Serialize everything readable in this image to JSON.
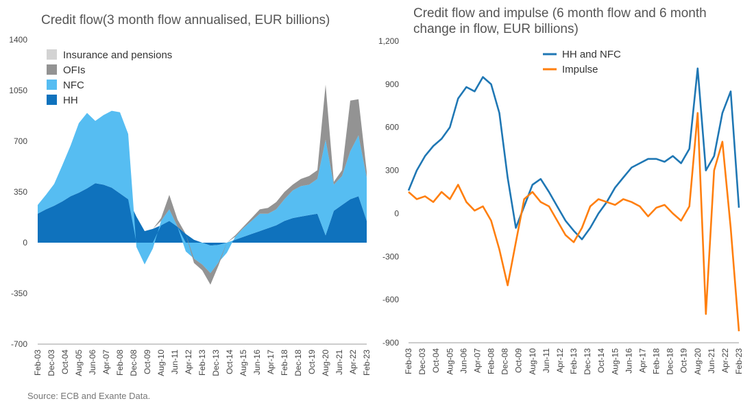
{
  "chart_data": [
    {
      "type": "area",
      "stacked": true,
      "title": "Credit flow(3 month flow annualised, EUR billions)",
      "ylim": [
        -700,
        1400
      ],
      "yticks": [
        1400,
        1050,
        700,
        350,
        0,
        -350,
        -700
      ],
      "ytick_labels": [
        "1400",
        "1050",
        "700",
        "350",
        "0",
        "-350",
        "-700"
      ],
      "xtick_labels": [
        "Feb-03",
        "Dec-03",
        "Oct-04",
        "Aug-05",
        "Jun-06",
        "Apr-07",
        "Feb-08",
        "Dec-08",
        "Oct-09",
        "Aug-10",
        "Jun-11",
        "Apr-12",
        "Feb-13",
        "Dec-13",
        "Oct-14",
        "Aug-15",
        "Jun-16",
        "Apr-17",
        "Feb-18",
        "Dec-18",
        "Oct-19",
        "Aug-20",
        "Jun-21",
        "Apr-22",
        "Feb-23"
      ],
      "legend_position": "top-left",
      "x": [
        "Feb-03",
        "Aug-03",
        "Feb-04",
        "Aug-04",
        "Feb-05",
        "Aug-05",
        "Feb-06",
        "Aug-06",
        "Feb-07",
        "Aug-07",
        "Feb-08",
        "Aug-08",
        "Feb-09",
        "Aug-09",
        "Feb-10",
        "Aug-10",
        "Feb-11",
        "Aug-11",
        "Feb-12",
        "Aug-12",
        "Feb-13",
        "Aug-13",
        "Feb-14",
        "Aug-14",
        "Feb-15",
        "Aug-15",
        "Feb-16",
        "Aug-16",
        "Feb-17",
        "Aug-17",
        "Feb-18",
        "Aug-18",
        "Feb-19",
        "Aug-19",
        "Feb-20",
        "Aug-20",
        "Feb-21",
        "Aug-21",
        "Feb-22",
        "Aug-22",
        "Feb-23"
      ],
      "series": [
        {
          "name": "HH",
          "color": "#0f72bd",
          "values": [
            200,
            230,
            255,
            285,
            320,
            345,
            375,
            410,
            400,
            380,
            340,
            300,
            180,
            80,
            95,
            120,
            150,
            110,
            60,
            20,
            0,
            -20,
            -15,
            0,
            20,
            40,
            60,
            80,
            100,
            120,
            150,
            170,
            180,
            190,
            200,
            50,
            220,
            260,
            300,
            320,
            150
          ]
        },
        {
          "name": "NFC",
          "color": "#56bdf2",
          "values": [
            60,
            100,
            150,
            250,
            350,
            480,
            520,
            430,
            480,
            530,
            560,
            450,
            -30,
            -150,
            -40,
            30,
            80,
            0,
            -60,
            -110,
            -150,
            -190,
            -120,
            -70,
            20,
            60,
            90,
            120,
            100,
            110,
            150,
            190,
            210,
            210,
            240,
            660,
            180,
            200,
            330,
            420,
            300
          ]
        },
        {
          "name": "OFIs",
          "color": "#939393",
          "values": [
            0,
            0,
            0,
            0,
            0,
            0,
            0,
            0,
            0,
            0,
            0,
            0,
            0,
            0,
            0,
            20,
            100,
            50,
            0,
            -30,
            -40,
            -80,
            -20,
            0,
            10,
            10,
            20,
            30,
            40,
            50,
            50,
            40,
            50,
            60,
            60,
            380,
            20,
            40,
            350,
            250,
            40
          ]
        },
        {
          "name": "Insurance and pensions",
          "color": "#d3d3d3",
          "values": [
            0,
            0,
            0,
            0,
            0,
            0,
            0,
            0,
            0,
            0,
            0,
            0,
            0,
            0,
            0,
            0,
            0,
            0,
            0,
            0,
            0,
            0,
            0,
            0,
            0,
            0,
            0,
            0,
            0,
            0,
            0,
            0,
            0,
            0,
            0,
            0,
            0,
            0,
            0,
            0,
            0
          ]
        }
      ]
    },
    {
      "type": "line",
      "title": "Credit flow and impulse (6 month flow and 6 month change in flow, EUR billions)",
      "ylim": [
        -900,
        1200
      ],
      "yticks": [
        1200,
        900,
        600,
        300,
        0,
        -300,
        -600,
        -900
      ],
      "ytick_labels": [
        "1,200",
        "900",
        "600",
        "300",
        "0",
        "-300",
        "-600",
        "-900"
      ],
      "xtick_labels": [
        "Feb-03",
        "Dec-03",
        "Oct-04",
        "Aug-05",
        "Jun-06",
        "Apr-07",
        "Feb-08",
        "Dec-08",
        "Oct-09",
        "Aug-10",
        "Jun-11",
        "Apr-12",
        "Feb-13",
        "Dec-13",
        "Oct-14",
        "Aug-15",
        "Jun-16",
        "Apr-17",
        "Feb-18",
        "Dec-18",
        "Oct-19",
        "Aug-20",
        "Jun-21",
        "Apr-22",
        "Feb-23"
      ],
      "legend_position": "top-center",
      "x": [
        "Feb-03",
        "Aug-03",
        "Feb-04",
        "Aug-04",
        "Feb-05",
        "Aug-05",
        "Feb-06",
        "Aug-06",
        "Feb-07",
        "Aug-07",
        "Feb-08",
        "Aug-08",
        "Feb-09",
        "Aug-09",
        "Feb-10",
        "Aug-10",
        "Feb-11",
        "Aug-11",
        "Feb-12",
        "Aug-12",
        "Feb-13",
        "Aug-13",
        "Feb-14",
        "Aug-14",
        "Feb-15",
        "Aug-15",
        "Feb-16",
        "Aug-16",
        "Feb-17",
        "Aug-17",
        "Feb-18",
        "Aug-18",
        "Feb-19",
        "Aug-19",
        "Feb-20",
        "Aug-20",
        "Feb-21",
        "Aug-21",
        "Feb-22",
        "Aug-22",
        "Feb-23"
      ],
      "series": [
        {
          "name": "HH and NFC",
          "color": "#1f77b4",
          "values": [
            160,
            300,
            400,
            470,
            520,
            600,
            800,
            880,
            850,
            950,
            900,
            700,
            250,
            -100,
            50,
            200,
            240,
            150,
            50,
            -50,
            -120,
            -180,
            -100,
            0,
            80,
            180,
            250,
            320,
            350,
            380,
            380,
            360,
            400,
            350,
            450,
            1010,
            300,
            400,
            700,
            850,
            40
          ]
        },
        {
          "name": "Impulse",
          "color": "#ff7f0e",
          "values": [
            150,
            100,
            120,
            80,
            150,
            100,
            200,
            80,
            20,
            50,
            -50,
            -250,
            -500,
            -200,
            100,
            150,
            80,
            50,
            -50,
            -150,
            -200,
            -100,
            50,
            100,
            80,
            60,
            100,
            80,
            50,
            -20,
            40,
            60,
            0,
            -50,
            50,
            700,
            -700,
            300,
            500,
            -100,
            -820
          ]
        }
      ]
    }
  ],
  "source": "Source: ECB and Exante Data."
}
